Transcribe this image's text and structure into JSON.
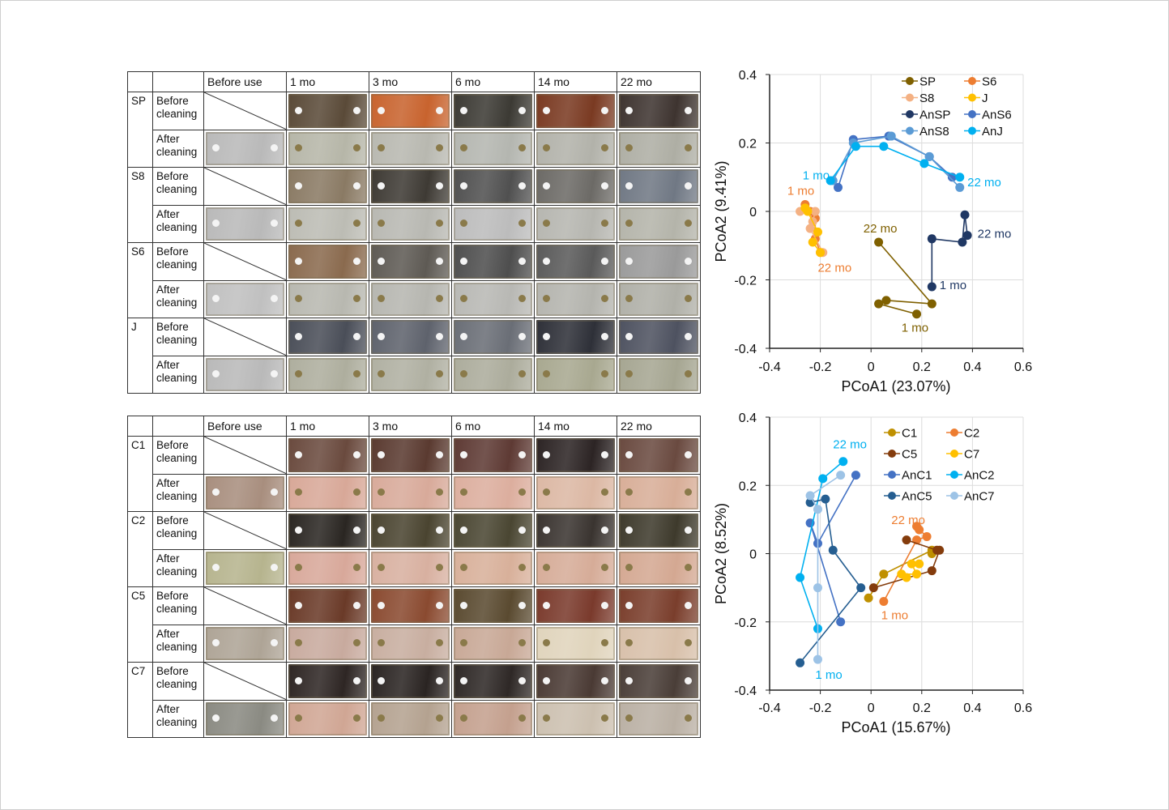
{
  "tables": [
    {
      "headers": [
        "",
        "",
        "Before use",
        "1 mo",
        "3 mo",
        "6 mo",
        "14 mo",
        "22 mo"
      ],
      "rows": [
        {
          "sample": "SP",
          "state": "Before cleaning",
          "tones": [
            "",
            "#5a4a38",
            "#c8632e",
            "#3c3a34",
            "#7a3a22",
            "#3e3430"
          ]
        },
        {
          "sample": "",
          "state": "After cleaning",
          "tones": [
            "#b9b9b9",
            "#b6b6a8",
            "#b8b8b0",
            "#b4b6b0",
            "#b2b2aa",
            "#aeaea4"
          ]
        },
        {
          "sample": "S8",
          "state": "Before cleaning",
          "tones": [
            "",
            "#8a7a64",
            "#3e3a34",
            "#505050",
            "#6c6a66",
            "#707884"
          ]
        },
        {
          "sample": "",
          "state": "After cleaning",
          "tones": [
            "#b9b9b9",
            "#bcbcb4",
            "#b8b8b2",
            "#bcbcbc",
            "#b6b6b0",
            "#b4b4aa"
          ]
        },
        {
          "sample": "S6",
          "state": "Before cleaning",
          "tones": [
            "",
            "#8a6a4e",
            "#5e5a54",
            "#4e4e4e",
            "#5a5a5a",
            "#9a9a9a"
          ]
        },
        {
          "sample": "",
          "state": "After cleaning",
          "tones": [
            "#c0c0c0",
            "#b8b8b0",
            "#b6b6b0",
            "#b8b8b4",
            "#b4b4ae",
            "#b0b0a8"
          ]
        },
        {
          "sample": "J",
          "state": "Before cleaning",
          "tones": [
            "",
            "#4a4e58",
            "#5e626c",
            "#6a6e76",
            "#2e3038",
            "#4e5260"
          ]
        },
        {
          "sample": "",
          "state": "After cleaning",
          "tones": [
            "#b9b9b9",
            "#aeae9e",
            "#b0b0a2",
            "#acac9c",
            "#a8a890",
            "#a6a692"
          ]
        }
      ]
    },
    {
      "headers": [
        "",
        "",
        "Before use",
        "1 mo",
        "3 mo",
        "6 mo",
        "14 mo",
        "22 mo"
      ],
      "rows": [
        {
          "sample": "C1",
          "state": "Before cleaning",
          "tones": [
            "",
            "#6a4a3e",
            "#5a3a30",
            "#5e3a34",
            "#2c2424",
            "#6a4a40"
          ]
        },
        {
          "sample": "",
          "state": "After cleaning",
          "tones": [
            "#a88e7e",
            "#d8a898",
            "#d8aa9a",
            "#dcae9e",
            "#dcb8a4",
            "#d8ae98"
          ]
        },
        {
          "sample": "C2",
          "state": "Before cleaning",
          "tones": [
            "",
            "#2a2622",
            "#4a4430",
            "#4a4632",
            "#3a3430",
            "#3e3a2c"
          ]
        },
        {
          "sample": "",
          "state": "After cleaning",
          "tones": [
            "#b6b48e",
            "#d8a89a",
            "#d8b0a0",
            "#d8b09a",
            "#d6ac98",
            "#d4a892"
          ]
        },
        {
          "sample": "C5",
          "state": "Before cleaning",
          "tones": [
            "",
            "#6a3a28",
            "#8a4a30",
            "#5a4a30",
            "#7a3a2c",
            "#7a3e2c"
          ]
        },
        {
          "sample": "",
          "state": "After cleaning",
          "tones": [
            "#aea496",
            "#c8aa9e",
            "#c8aea0",
            "#c8a896",
            "#e0d4bc",
            "#d8c0aa"
          ]
        },
        {
          "sample": "C7",
          "state": "Before cleaning",
          "tones": [
            "",
            "#2e2624",
            "#2a2422",
            "#2e2826",
            "#4a3a34",
            "#4a3e38"
          ]
        },
        {
          "sample": "",
          "state": "After cleaning",
          "tones": [
            "#8a8a82",
            "#d0a694",
            "#b4a290",
            "#c4a08e",
            "#ccc0b0",
            "#bab0a4"
          ]
        }
      ]
    }
  ],
  "chart_data": [
    {
      "type": "scatter",
      "xlabel": "PCoA1 (23.07%)",
      "ylabel": "PCoA2 (9.41%)",
      "xlim": [
        -0.4,
        0.6
      ],
      "ylim": [
        -0.4,
        0.4
      ],
      "xticks": [
        "-0.4",
        "-0.2",
        "0",
        "0.2",
        "0.4",
        "0.6"
      ],
      "yticks": [
        "0.4",
        "0.2",
        "0",
        "-0.2",
        "-0.4"
      ],
      "grid": true,
      "legend": "top-right",
      "series": [
        {
          "name": "SP",
          "color": "#7f6000",
          "points": [
            [
              0.18,
              -0.3
            ],
            [
              0.03,
              -0.27
            ],
            [
              0.06,
              -0.26
            ],
            [
              0.24,
              -0.27
            ],
            [
              0.03,
              -0.09
            ]
          ]
        },
        {
          "name": "S6",
          "color": "#ed7d31",
          "points": [
            [
              -0.26,
              0.02
            ],
            [
              -0.24,
              0.0
            ],
            [
              -0.22,
              -0.02
            ],
            [
              -0.22,
              -0.08
            ],
            [
              -0.2,
              -0.12
            ]
          ]
        },
        {
          "name": "S8",
          "color": "#f4b183",
          "points": [
            [
              -0.28,
              0.0
            ],
            [
              -0.22,
              0.0
            ],
            [
              -0.23,
              -0.03
            ],
            [
              -0.24,
              -0.05
            ],
            [
              -0.19,
              -0.12
            ]
          ]
        },
        {
          "name": "J",
          "color": "#ffc000",
          "points": [
            [
              -0.26,
              0.01
            ],
            [
              -0.25,
              0.0
            ],
            [
              -0.21,
              -0.06
            ],
            [
              -0.23,
              -0.09
            ],
            [
              -0.2,
              -0.12
            ]
          ]
        },
        {
          "name": "AnSP",
          "color": "#203864",
          "points": [
            [
              0.24,
              -0.22
            ],
            [
              0.24,
              -0.08
            ],
            [
              0.36,
              -0.09
            ],
            [
              0.37,
              -0.01
            ],
            [
              0.38,
              -0.07
            ]
          ]
        },
        {
          "name": "AnS6",
          "color": "#4472c4",
          "points": [
            [
              -0.13,
              0.07
            ],
            [
              -0.07,
              0.21
            ],
            [
              0.07,
              0.22
            ],
            [
              0.23,
              0.16
            ],
            [
              0.32,
              0.1
            ]
          ]
        },
        {
          "name": "AnS8",
          "color": "#5b9bd5",
          "points": [
            [
              -0.15,
              0.09
            ],
            [
              -0.07,
              0.2
            ],
            [
              0.08,
              0.22
            ],
            [
              0.23,
              0.16
            ],
            [
              0.35,
              0.07
            ]
          ]
        },
        {
          "name": "AnJ",
          "color": "#00b0f0",
          "points": [
            [
              -0.16,
              0.09
            ],
            [
              -0.06,
              0.19
            ],
            [
              0.05,
              0.19
            ],
            [
              0.21,
              0.14
            ],
            [
              0.35,
              0.1
            ]
          ]
        }
      ],
      "annotations": [
        {
          "text": "1 mo",
          "color": "#00b0f0",
          "at": [
            -0.27,
            0.105
          ]
        },
        {
          "text": "1 mo",
          "color": "#ed7d31",
          "at": [
            -0.33,
            0.06
          ]
        },
        {
          "text": "22 mo",
          "color": "#00b0f0",
          "at": [
            0.38,
            0.085
          ]
        },
        {
          "text": "22 mo",
          "color": "#7f6000",
          "at": [
            -0.03,
            -0.05
          ]
        },
        {
          "text": "22 mo",
          "color": "#203864",
          "at": [
            0.42,
            -0.065
          ]
        },
        {
          "text": "22 mo",
          "color": "#ed7d31",
          "at": [
            -0.21,
            -0.165
          ]
        },
        {
          "text": "1 mo",
          "color": "#203864",
          "at": [
            0.27,
            -0.215
          ]
        },
        {
          "text": "1 mo",
          "color": "#7f6000",
          "at": [
            0.12,
            -0.34
          ]
        }
      ]
    },
    {
      "type": "scatter",
      "xlabel": "PCoA1 (15.67%)",
      "ylabel": "PCoA2 (8.52%)",
      "xlim": [
        -0.4,
        0.6
      ],
      "ylim": [
        -0.4,
        0.4
      ],
      "xticks": [
        "-0.4",
        "-0.2",
        "0",
        "0.2",
        "0.4",
        "0.6"
      ],
      "yticks": [
        "0.4",
        "0.2",
        "0",
        "-0.2",
        "-0.4"
      ],
      "grid": true,
      "legend": "top-right",
      "series": [
        {
          "name": "C1",
          "color": "#bf9000",
          "points": [
            [
              -0.01,
              -0.13
            ],
            [
              0.05,
              -0.06
            ],
            [
              0.24,
              0.01
            ],
            [
              0.24,
              0.0
            ]
          ]
        },
        {
          "name": "C2",
          "color": "#ed7d31",
          "points": [
            [
              0.05,
              -0.14
            ],
            [
              0.18,
              0.04
            ],
            [
              0.22,
              0.05
            ],
            [
              0.19,
              0.07
            ],
            [
              0.18,
              0.08
            ]
          ]
        },
        {
          "name": "C5",
          "color": "#843c0c",
          "points": [
            [
              0.01,
              -0.1
            ],
            [
              0.24,
              -0.05
            ],
            [
              0.27,
              0.01
            ],
            [
              0.26,
              0.01
            ],
            [
              0.14,
              0.04
            ]
          ]
        },
        {
          "name": "C7",
          "color": "#ffc000",
          "points": [
            [
              0.14,
              -0.07
            ],
            [
              0.12,
              -0.06
            ],
            [
              0.18,
              -0.06
            ],
            [
              0.16,
              -0.03
            ],
            [
              0.19,
              -0.03
            ]
          ]
        },
        {
          "name": "AnC1",
          "color": "#4472c4",
          "points": [
            [
              -0.12,
              -0.2
            ],
            [
              -0.24,
              0.09
            ],
            [
              -0.21,
              0.03
            ],
            [
              -0.06,
              0.23
            ]
          ]
        },
        {
          "name": "AnC2",
          "color": "#00b0f0",
          "points": [
            [
              -0.21,
              -0.22
            ],
            [
              -0.28,
              -0.07
            ],
            [
              -0.19,
              0.22
            ],
            [
              -0.11,
              0.27
            ]
          ]
        },
        {
          "name": "AnC5",
          "color": "#255e91",
          "points": [
            [
              -0.28,
              -0.32
            ],
            [
              -0.04,
              -0.1
            ],
            [
              -0.15,
              0.01
            ],
            [
              -0.18,
              0.16
            ],
            [
              -0.24,
              0.15
            ]
          ]
        },
        {
          "name": "AnC7",
          "color": "#9dc3e6",
          "points": [
            [
              -0.21,
              -0.31
            ],
            [
              -0.21,
              -0.1
            ],
            [
              -0.21,
              0.13
            ],
            [
              -0.24,
              0.17
            ],
            [
              -0.12,
              0.23
            ]
          ]
        }
      ],
      "annotations": [
        {
          "text": "22 mo",
          "color": "#00b0f0",
          "at": [
            -0.15,
            0.32
          ]
        },
        {
          "text": "22 mo",
          "color": "#ed7d31",
          "at": [
            0.08,
            0.098
          ]
        },
        {
          "text": "1 mo",
          "color": "#ed7d31",
          "at": [
            0.04,
            -0.18
          ]
        },
        {
          "text": "1 mo",
          "color": "#00b0f0",
          "at": [
            -0.22,
            -0.355
          ]
        }
      ]
    }
  ]
}
